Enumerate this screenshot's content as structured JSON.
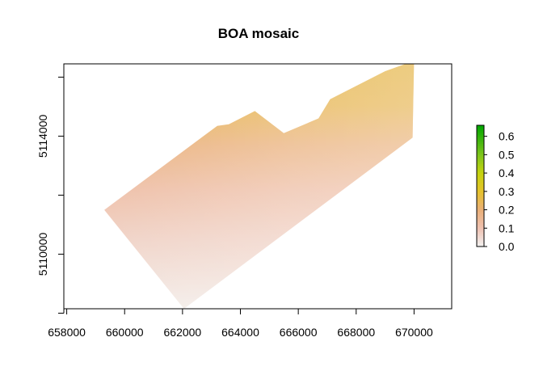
{
  "chart_data": {
    "type": "heatmap",
    "title": "BOA mosaic",
    "xlabel": "",
    "ylabel": "",
    "xlim": [
      657900,
      671300
    ],
    "ylim": [
      5108150,
      5116450
    ],
    "x_ticks": [
      {
        "value": 658000,
        "label": "658000"
      },
      {
        "value": 660000,
        "label": "660000"
      },
      {
        "value": 662000,
        "label": "662000"
      },
      {
        "value": 664000,
        "label": "664000"
      },
      {
        "value": 666000,
        "label": "666000"
      },
      {
        "value": 668000,
        "label": "668000"
      },
      {
        "value": 670000,
        "label": "670000"
      }
    ],
    "y_ticks": [
      {
        "value": 5110000,
        "label": "5110000"
      },
      {
        "value": 5114000,
        "label": "5114000"
      }
    ],
    "y_minor_ticks": [
      5108000,
      5112000,
      5116000
    ],
    "raster_outline": [
      [
        659300,
        5111500
      ],
      [
        663200,
        5114350
      ],
      [
        663600,
        5114400
      ],
      [
        664500,
        5114850
      ],
      [
        665500,
        5114100
      ],
      [
        666700,
        5114600
      ],
      [
        667100,
        5115250
      ],
      [
        669000,
        5116200
      ],
      [
        670000,
        5116550
      ],
      [
        669950,
        5113950
      ],
      [
        662050,
        5108150
      ]
    ],
    "colorbar": {
      "range": [
        0,
        0.66
      ],
      "ticks": [
        {
          "value": 0.0,
          "label": "0.0"
        },
        {
          "value": 0.1,
          "label": "0.1"
        },
        {
          "value": 0.2,
          "label": "0.2"
        },
        {
          "value": 0.3,
          "label": "0.3"
        },
        {
          "value": 0.4,
          "label": "0.4"
        },
        {
          "value": 0.5,
          "label": "0.5"
        },
        {
          "value": 0.6,
          "label": "0.6"
        }
      ],
      "color_stops": [
        {
          "value": 0.0,
          "color": "#f2f2f2"
        },
        {
          "value": 0.1,
          "color": "#efc2b2"
        },
        {
          "value": 0.2,
          "color": "#eaaf78"
        },
        {
          "value": 0.3,
          "color": "#e6c22c"
        },
        {
          "value": 0.4,
          "color": "#c6d30f"
        },
        {
          "value": 0.5,
          "color": "#7ec51b"
        },
        {
          "value": 0.66,
          "color": "#00a600"
        }
      ]
    }
  }
}
